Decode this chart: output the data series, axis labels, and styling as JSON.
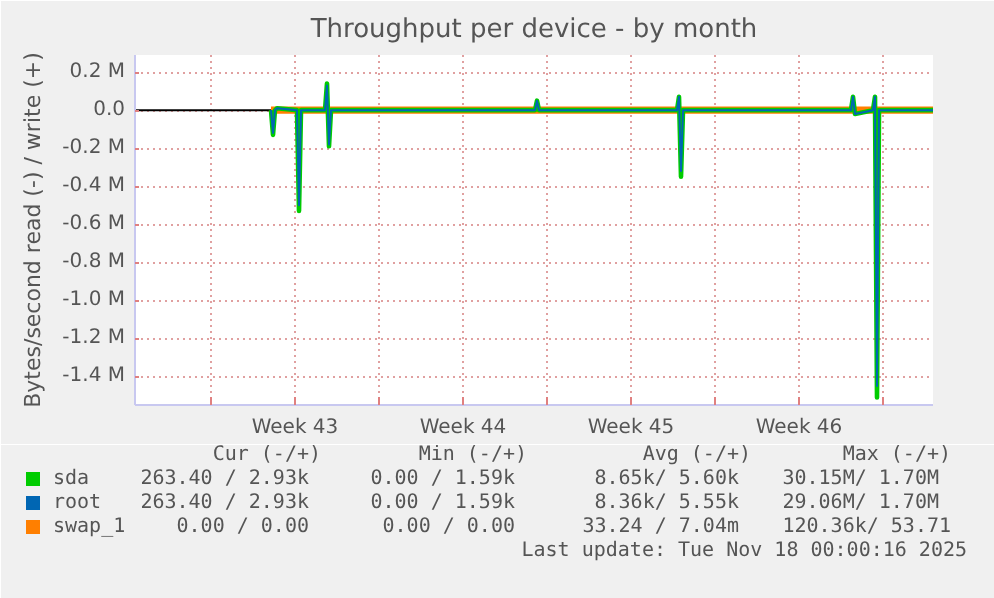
{
  "chart_data": {
    "type": "line",
    "title": "Throughput per device - by month",
    "ylabel": "Bytes/second read (-) / write (+)",
    "xlim": [
      "2025-10-16T20:00",
      "2025-11-19T02:00"
    ],
    "xticks": [
      {
        "value": "2025-10-20",
        "label": null
      },
      {
        "value": "2025-10-23T12:00",
        "label": "Week 43"
      },
      {
        "value": "2025-10-27",
        "label": null
      },
      {
        "value": "2025-10-30T12:00",
        "label": "Week 44"
      },
      {
        "value": "2025-11-03",
        "label": null
      },
      {
        "value": "2025-11-06T12:00",
        "label": "Week 45"
      },
      {
        "value": "2025-11-10",
        "label": null
      },
      {
        "value": "2025-11-13T12:00",
        "label": "Week 46"
      },
      {
        "value": "2025-11-17",
        "label": null
      }
    ],
    "ylim": [
      -1550000,
      290000
    ],
    "yticks": [
      {
        "value": -1400000,
        "label": "-1.4 M"
      },
      {
        "value": -1200000,
        "label": "-1.2 M"
      },
      {
        "value": -1000000,
        "label": "-1.0 M"
      },
      {
        "value": -800000,
        "label": "-0.8 M"
      },
      {
        "value": -600000,
        "label": "-0.6 M"
      },
      {
        "value": -400000,
        "label": "-0.4 M"
      },
      {
        "value": -200000,
        "label": "-0.2 M"
      },
      {
        "value": 0,
        "label": "0.0"
      },
      {
        "value": 200000,
        "label": "0.2 M"
      }
    ],
    "grid": true,
    "legend": "bottom",
    "series": [
      {
        "name": "swap_1",
        "color": "#ff7f00",
        "x": [
          "2025-10-22T12:00",
          "2025-11-19T02:00"
        ],
        "values": [
          0,
          0
        ]
      },
      {
        "name": "sda",
        "color": "#00cc00",
        "x": [
          "2025-10-22T12:00",
          "2025-10-22T14:00",
          "2025-10-22T16:00",
          "2025-10-22T18:00",
          "2025-10-23T14:00",
          "2025-10-23T16:00",
          "2025-10-23T18:00",
          "2025-10-24T18:00",
          "2025-10-24T20:00",
          "2025-10-24T22:00",
          "2025-10-25T00:00",
          "2025-11-02T12:00",
          "2025-11-02T14:00",
          "2025-11-02T16:00",
          "2025-11-08T10:00",
          "2025-11-08T12:00",
          "2025-11-08T14:00",
          "2025-11-08T16:00",
          "2025-11-15T16:00",
          "2025-11-15T18:00",
          "2025-11-15T20:00",
          "2025-11-16T14:00",
          "2025-11-16T16:00",
          "2025-11-16T18:00",
          "2025-11-16T20:00",
          "2025-11-19T02:00"
        ],
        "values": [
          0,
          -130000,
          0,
          10000,
          0,
          -530000,
          0,
          0,
          140000,
          -190000,
          0,
          0,
          50000,
          0,
          0,
          70000,
          -350000,
          0,
          0,
          70000,
          -20000,
          0,
          70000,
          -1510000,
          0,
          0
        ]
      },
      {
        "name": "root",
        "color": "#0066b3",
        "x": [
          "2025-10-22T12:00",
          "2025-10-22T14:00",
          "2025-10-22T16:00",
          "2025-10-22T18:00",
          "2025-10-23T14:00",
          "2025-10-23T16:00",
          "2025-10-23T18:00",
          "2025-10-24T18:00",
          "2025-10-24T20:00",
          "2025-10-24T22:00",
          "2025-10-25T00:00",
          "2025-11-02T12:00",
          "2025-11-02T14:00",
          "2025-11-02T16:00",
          "2025-11-08T10:00",
          "2025-11-08T12:00",
          "2025-11-08T14:00",
          "2025-11-08T16:00",
          "2025-11-15T16:00",
          "2025-11-15T18:00",
          "2025-11-15T20:00",
          "2025-11-16T14:00",
          "2025-11-16T16:00",
          "2025-11-16T18:00",
          "2025-11-16T20:00",
          "2025-11-19T02:00"
        ],
        "values": [
          0,
          -120000,
          0,
          10000,
          0,
          -500000,
          0,
          0,
          130000,
          -180000,
          0,
          0,
          50000,
          0,
          0,
          70000,
          -320000,
          0,
          0,
          70000,
          -20000,
          0,
          70000,
          -1450000,
          0,
          0
        ]
      }
    ],
    "annotations": [
      "Cur (-/+)",
      "Min (-/+)",
      "Avg (-/+)",
      "Max (-/+)",
      "263.40 /  2.93k",
      "0.00 /  1.59k",
      "8.65k/  5.60k",
      "30.15M/  1.70M",
      "263.40 /  2.93k",
      "0.00 /  1.59k",
      "8.36k/  5.55k",
      "29.06M/  1.70M",
      "0.00 /  0.00",
      "0.00 /  0.00",
      "33.24 /  7.04m",
      "120.36k/ 53.71",
      "Last update: Tue Nov 18 00:00:16 2025"
    ]
  }
}
